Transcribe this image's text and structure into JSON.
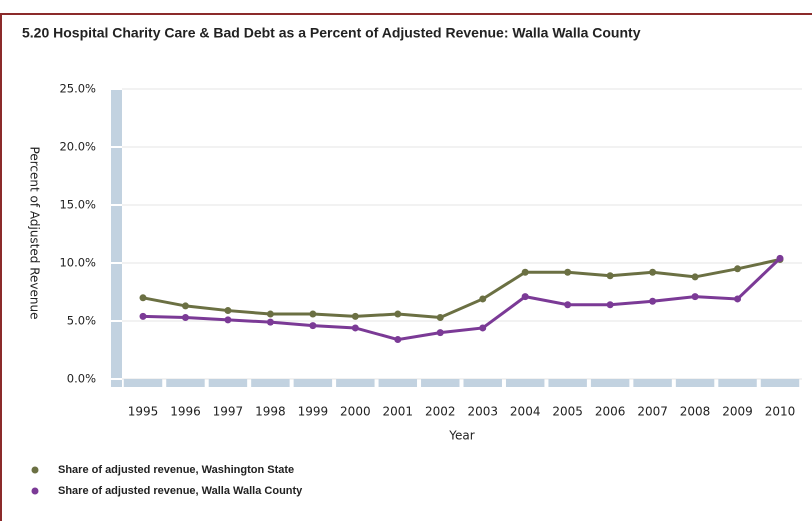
{
  "chart_data": {
    "type": "line",
    "title": "5.20 Hospital Charity Care & Bad Debt as a Percent of Adjusted Revenue:  Walla Walla County",
    "x_label": "Year",
    "y_label": "Percent of Adjusted Revenue",
    "categories": [
      "1995",
      "1996",
      "1997",
      "1998",
      "1999",
      "2000",
      "2001",
      "2002",
      "2003",
      "2004",
      "2005",
      "2006",
      "2007",
      "2008",
      "2009",
      "2010"
    ],
    "series": [
      {
        "name": "Share of adjusted revenue, Washington State",
        "color": "#6b7043",
        "values": [
          7.0,
          6.3,
          5.9,
          5.6,
          5.6,
          5.4,
          5.6,
          5.3,
          6.9,
          9.2,
          9.2,
          8.9,
          9.2,
          8.8,
          9.5,
          10.3
        ]
      },
      {
        "name": "Share of adjusted revenue, Walla Walla County",
        "color": "#7b3a96",
        "values": [
          5.4,
          5.3,
          5.1,
          4.9,
          4.6,
          4.4,
          3.4,
          4.0,
          4.4,
          7.1,
          6.4,
          6.4,
          6.7,
          7.1,
          6.9,
          10.4
        ]
      }
    ],
    "ylim": [
      0,
      25
    ],
    "yticks": [
      {
        "value": 0,
        "label": "0.0%"
      },
      {
        "value": 5,
        "label": "5.0%"
      },
      {
        "value": 10,
        "label": "10.0%"
      },
      {
        "value": 15,
        "label": "15.0%"
      },
      {
        "value": 20,
        "label": "20.0%"
      },
      {
        "value": 25,
        "label": "25.0%"
      }
    ],
    "grid": true
  }
}
